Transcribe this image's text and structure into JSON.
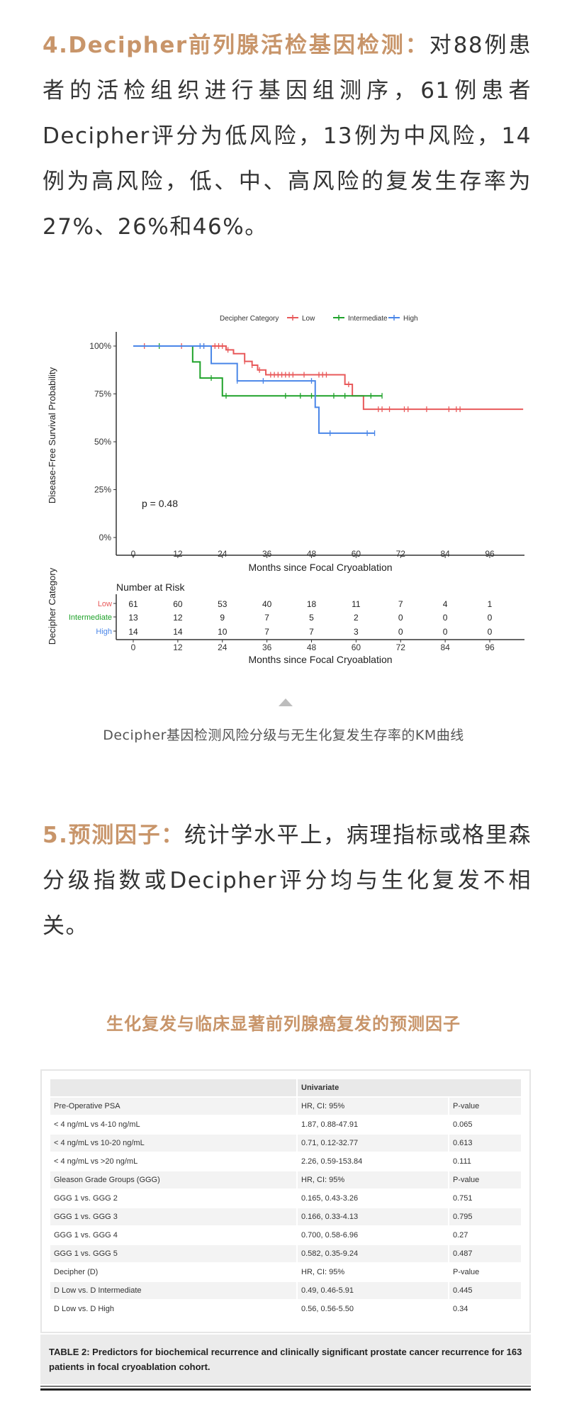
{
  "section4": {
    "heading": "4.Decipher前列腺活检基因检测：",
    "body": "对88例患者的活检组织进行基因组测序，61例患者Decipher评分为低风险，13例为中风险，14例为高风险，低、中、高风险的复发生存率为27%、26%和46%。"
  },
  "figure_caption": "Decipher基因检测风险分级与无生化复发生存率的KM曲线",
  "section5": {
    "heading": "5.预测因子：",
    "body": "统计学水平上，病理指标或格里森分级指数或Decipher评分均与生化复发不相关。"
  },
  "table_title": "生化复发与临床显著前列腺癌复发的预测因子",
  "chart_data": {
    "type": "line",
    "subtype": "kaplan-meier",
    "legend_title": "Decipher Category",
    "legend_position": "top",
    "xlabel": "Months since Focal Cryoablation",
    "ylabel": "Disease-Free Survival Probability",
    "x_ticks": [
      0,
      12,
      24,
      36,
      48,
      60,
      72,
      84,
      96
    ],
    "y_ticks": [
      "0%",
      "25%",
      "50%",
      "75%",
      "100%"
    ],
    "xlim": [
      0,
      105
    ],
    "ylim": [
      0,
      1
    ],
    "annotation": "p = 0.48",
    "grid": false,
    "series": [
      {
        "name": "Low",
        "color": "#e8595a",
        "steps": [
          [
            0,
            1.0
          ],
          [
            25,
            0.98
          ],
          [
            27,
            0.96
          ],
          [
            30,
            0.92
          ],
          [
            32,
            0.9
          ],
          [
            33.5,
            0.875
          ],
          [
            35.7,
            0.85
          ],
          [
            57,
            0.8
          ],
          [
            59,
            0.74
          ],
          [
            62,
            0.67
          ]
        ],
        "end": 105,
        "censors": [
          3,
          13,
          19,
          22,
          23,
          24,
          25.5,
          30,
          32,
          34,
          37,
          38,
          39,
          40,
          41,
          42,
          43,
          46,
          50,
          51,
          52,
          58,
          66,
          67,
          69,
          73,
          74,
          79,
          85,
          87,
          88
        ]
      },
      {
        "name": "Intermediate",
        "color": "#1fa22a",
        "steps": [
          [
            0,
            1.0
          ],
          [
            16,
            0.917
          ],
          [
            18,
            0.833
          ],
          [
            24,
            0.74
          ]
        ],
        "end": 67,
        "censors": [
          7,
          21,
          25,
          41,
          45,
          48,
          54,
          57,
          64,
          67
        ]
      },
      {
        "name": "High",
        "color": "#4a86e8",
        "steps": [
          [
            0,
            1.0
          ],
          [
            21,
            0.909
          ],
          [
            28,
            0.818
          ],
          [
            49,
            0.68
          ],
          [
            50,
            0.545
          ]
        ],
        "end": 65,
        "censors": [
          18,
          19,
          28,
          35,
          48,
          53,
          63,
          65
        ]
      }
    ],
    "risk_table": {
      "title": "Number at Risk",
      "ylabel": "Decipher Category",
      "xlabel": "Months since Focal Cryoablation",
      "rows": [
        {
          "name": "Low",
          "values": [
            61,
            60,
            53,
            40,
            18,
            11,
            7,
            4,
            1
          ]
        },
        {
          "name": "Intermediate",
          "values": [
            13,
            12,
            9,
            7,
            5,
            2,
            0,
            0,
            0
          ]
        },
        {
          "name": "High",
          "values": [
            14,
            14,
            10,
            7,
            7,
            3,
            0,
            0,
            0
          ]
        }
      ]
    }
  },
  "table": {
    "header": "Univariate",
    "rows": [
      [
        "Pre-Operative PSA",
        "HR, CI: 95%",
        "P-value"
      ],
      [
        "< 4 ng/mL vs 4-10 ng/mL",
        "1.87, 0.88-47.91",
        "0.065"
      ],
      [
        "< 4 ng/mL vs 10-20 ng/mL",
        "0.71, 0.12-32.77",
        "0.613"
      ],
      [
        "< 4 ng/mL vs >20 ng/mL",
        "2.26, 0.59-153.84",
        "0.111"
      ],
      [
        "Gleason Grade Groups (GGG)",
        "HR, CI: 95%",
        "P-value"
      ],
      [
        "GGG 1 vs. GGG 2",
        "0.165, 0.43-3.26",
        "0.751"
      ],
      [
        "GGG 1 vs. GGG 3",
        "0.166, 0.33-4.13",
        "0.795"
      ],
      [
        "GGG 1 vs. GGG 4",
        "0.700, 0.58-6.96",
        "0.27"
      ],
      [
        "GGG 1 vs. GGG 5",
        "0.582, 0.35-9.24",
        "0.487"
      ],
      [
        "Decipher (D)",
        "HR, CI: 95%",
        "P-value"
      ],
      [
        "D Low vs. D Intermediate",
        "0.49, 0.46-5.91",
        "0.445"
      ],
      [
        "D Low vs. D High",
        "0.56, 0.56-5.50",
        "0.34"
      ]
    ],
    "caption": "TABLE 2: Predictors for biochemical recurrence and clinically significant prostate cancer recurrence for 163 patients in focal cryoablation cohort."
  }
}
